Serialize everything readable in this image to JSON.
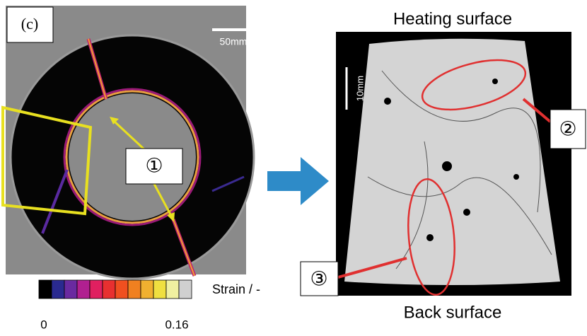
{
  "left_panel": {
    "label": "(c)",
    "scale_bar": "50mm",
    "marker": "①"
  },
  "right_panel": {
    "top_label": "Heating surface",
    "bottom_label": "Back surface",
    "scale_bar": "10mm",
    "marker_2": "②",
    "marker_3": "③"
  },
  "colorbar": {
    "title": "Strain / -",
    "min_label": "0",
    "max_label": "0.16"
  }
}
